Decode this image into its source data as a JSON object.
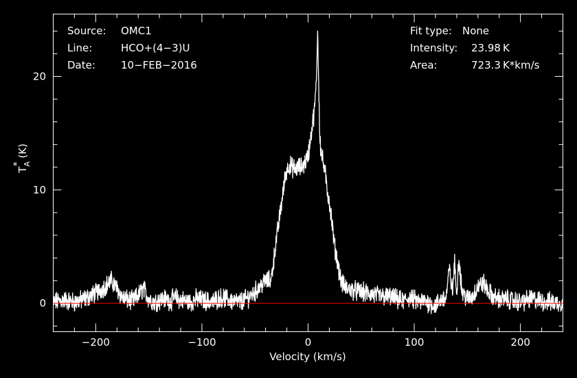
{
  "chart_data": {
    "type": "line",
    "title": "",
    "xlabel": "Velocity (km/s)",
    "ylabel": "T",
    "ylabel_sub": "A",
    "ylabel_sup": "*",
    "ylabel_unit": "(K)",
    "xlim": [
      -240,
      240
    ],
    "ylim": [
      -2.5,
      25.5
    ],
    "xticks_major": [
      -200,
      -100,
      0,
      100,
      200
    ],
    "xticks_major_labels": [
      "−200",
      "−100",
      "0",
      "100",
      "200"
    ],
    "yticks_major": [
      0,
      10,
      20
    ],
    "yticks_major_labels": [
      "0",
      "10",
      "20"
    ],
    "baseline": 0,
    "colors": {
      "background": "#000000",
      "frame": "#ffffff",
      "spectrum": "#ffffff",
      "baseline": "#ff0000"
    },
    "series": [
      {
        "x": [
          -240,
          -230,
          -220,
          -210,
          -200,
          -195,
          -190,
          -185,
          -180,
          -175,
          -170,
          -165,
          -160,
          -155,
          -150,
          -145,
          -140,
          -135,
          -130,
          -125,
          -120,
          -115,
          -110,
          -105,
          -100,
          -95,
          -90,
          -85,
          -80,
          -75,
          -70,
          -65,
          -60,
          -55,
          -50,
          -45,
          -40,
          -35,
          -30,
          -27,
          -24,
          -21,
          -18,
          -15,
          -12,
          -9,
          -6,
          -3,
          0,
          3,
          6,
          8,
          9,
          10,
          11,
          12,
          14,
          16,
          18,
          20,
          22,
          25,
          28,
          31,
          34,
          37,
          40,
          45,
          50,
          55,
          60,
          65,
          70,
          75,
          80,
          85,
          90,
          95,
          100,
          105,
          110,
          115,
          120,
          125,
          130,
          133,
          136,
          138,
          140,
          142,
          145,
          150,
          155,
          160,
          165,
          170,
          175,
          180,
          190,
          200,
          210,
          220,
          230,
          240
        ],
        "y": [
          0.1,
          0.3,
          0.1,
          0.4,
          0.9,
          1.2,
          1.6,
          2.0,
          1.3,
          0.5,
          0.3,
          0.2,
          0.7,
          1.3,
          0.4,
          0.1,
          0.3,
          0.4,
          0.2,
          0.5,
          0.3,
          0.2,
          0.1,
          0.4,
          0.3,
          0.2,
          0.1,
          0.4,
          0.5,
          0.3,
          0.2,
          0.1,
          0.3,
          0.6,
          1.0,
          1.5,
          2.0,
          2.0,
          5.5,
          7.5,
          9.5,
          11.5,
          12.2,
          12.0,
          11.8,
          12.0,
          12.0,
          12.4,
          13.0,
          15.0,
          17.0,
          20.0,
          23.98,
          19.5,
          15.0,
          13.5,
          12.5,
          11.5,
          10.0,
          9.0,
          7.5,
          5.0,
          3.5,
          2.0,
          1.5,
          1.3,
          1.2,
          1.1,
          1.0,
          0.9,
          0.8,
          0.7,
          0.6,
          0.6,
          0.5,
          0.3,
          0.2,
          0.5,
          0.3,
          0.1,
          0.2,
          0.0,
          -0.2,
          0.3,
          0.5,
          3.0,
          1.0,
          3.5,
          1.0,
          4.0,
          1.0,
          0.4,
          0.6,
          1.5,
          1.8,
          1.0,
          0.5,
          0.4,
          0.3,
          0.1,
          0.4,
          0.2,
          0.1,
          0.0
        ]
      }
    ]
  },
  "info": {
    "source_label": "Source:",
    "source_value": "OMC1",
    "line_label": "Line:",
    "line_value": "HCO+(4−3)U",
    "date_label": "Date:",
    "date_value": "10−FEB−2016",
    "fit_label": "Fit type:",
    "fit_value": "None",
    "intensity_label": "Intensity:",
    "intensity_value": "23.98 K",
    "area_label": "Area:",
    "area_value": "723.3 K*km/s"
  }
}
